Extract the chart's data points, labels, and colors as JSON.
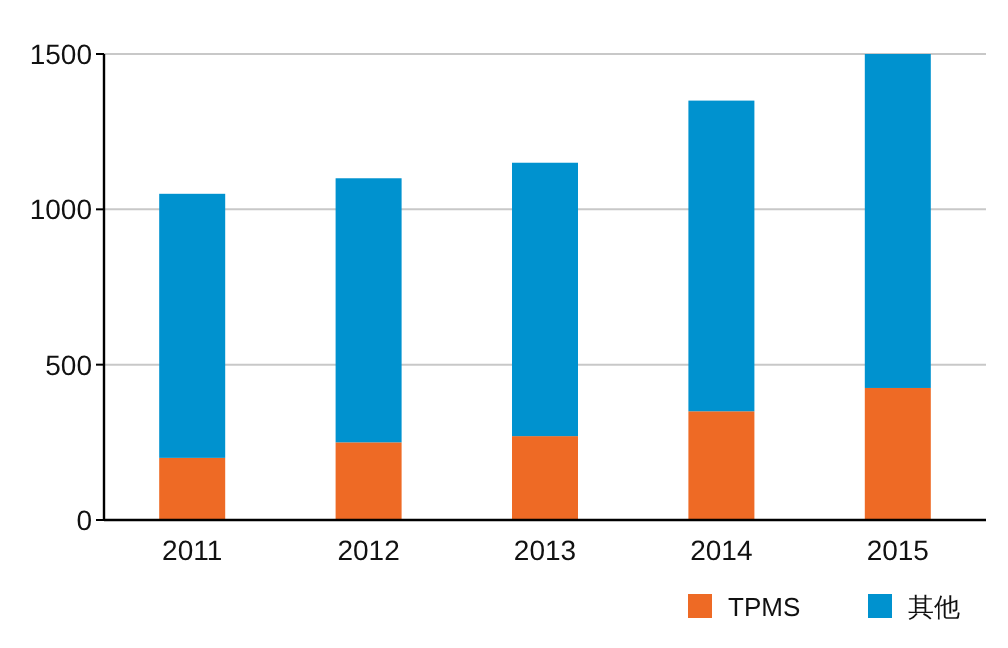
{
  "chart_data": {
    "type": "bar",
    "stacked": true,
    "categories": [
      "2011",
      "2012",
      "2013",
      "2014",
      "2015"
    ],
    "series": [
      {
        "name": "TPMS",
        "color": "#ee6a25",
        "values": [
          200,
          250,
          270,
          350,
          425
        ]
      },
      {
        "name": "其他",
        "color": "#0092cf",
        "values": [
          850,
          850,
          880,
          1000,
          1075
        ]
      }
    ],
    "ylim": [
      0,
      1500
    ],
    "yticks": [
      0,
      500,
      1000,
      1500
    ],
    "grid": "y",
    "legend": "bottom right"
  }
}
